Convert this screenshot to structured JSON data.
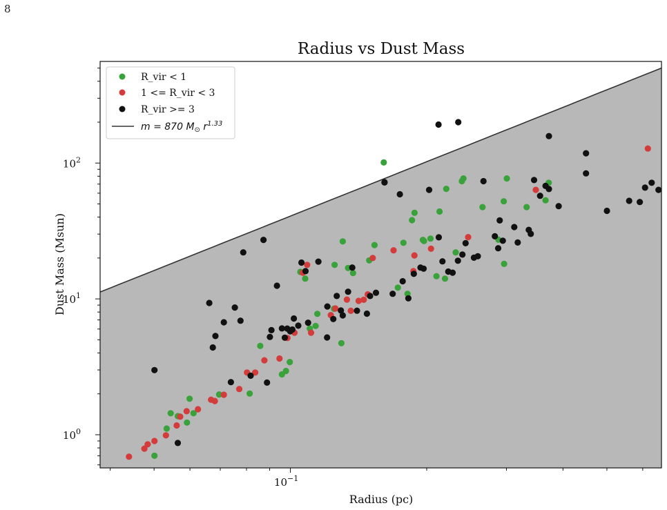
{
  "page_number": "8",
  "chart_data": {
    "type": "scatter",
    "title": "Radius vs Dust Mass",
    "xlabel": "Radius (pc)",
    "ylabel": "Dust Mass (Msun)",
    "xscale": "log",
    "yscale": "log",
    "xlim": [
      0.038,
      0.66
    ],
    "ylim": [
      0.57,
      560
    ],
    "xticks": [
      {
        "value": 0.1,
        "base": "10",
        "exp": "−1"
      }
    ],
    "yticks": [
      {
        "value": 1,
        "base": "10",
        "exp": "0"
      },
      {
        "value": 10,
        "base": "10",
        "exp": "1"
      },
      {
        "value": 100,
        "base": "10",
        "exp": "2"
      }
    ],
    "grid": false,
    "legend_position": "upper-left",
    "fit_line": {
      "label_prefix": "m = 870 M",
      "label_sub": "⊙",
      "label_mid": " r",
      "label_sup": "1.33",
      "coefficient": 870,
      "exponent": 1.33,
      "color": "#333333"
    },
    "shaded_region_color": "#b8b8b8",
    "series": [
      {
        "name": "R_vir < 1",
        "color": "#3aa23a",
        "x": [
          0.0501,
          0.0564,
          0.0533,
          0.0591,
          0.0599,
          0.0544,
          0.0611,
          0.0696,
          0.0813,
          0.0858,
          0.0958,
          0.0978,
          0.0997,
          0.1052,
          0.1078,
          0.1104,
          0.1137,
          0.1147,
          0.1248,
          0.1252,
          0.1305,
          0.1296,
          0.1341,
          0.1375,
          0.1493,
          0.1534,
          0.1608,
          0.1727,
          0.1814,
          0.1777,
          0.1856,
          0.188,
          0.1961,
          0.2195,
          0.1973,
          0.2039,
          0.2102,
          0.2135,
          0.2209,
          0.2318,
          0.2392,
          0.2411,
          0.2656,
          0.288,
          0.296,
          0.3006,
          0.3325,
          0.366,
          0.372,
          0.2965
        ],
        "y": [
          0.7,
          1.37,
          1.11,
          1.23,
          1.84,
          1.44,
          1.44,
          1.98,
          2.01,
          4.51,
          2.78,
          2.95,
          3.43,
          15.8,
          14.1,
          6.05,
          6.32,
          7.76,
          8.46,
          17.8,
          26.5,
          4.72,
          16.9,
          15.5,
          19.2,
          24.9,
          101.0,
          12.1,
          10.9,
          25.9,
          38.0,
          43.0,
          27.2,
          14.1,
          26.7,
          27.8,
          14.7,
          44.0,
          64.6,
          22.0,
          73.6,
          77.0,
          47.4,
          27.3,
          52.3,
          77.0,
          47.4,
          53.2,
          71.6,
          18.1
        ]
      },
      {
        "name": "1 <= R_vir < 3",
        "color": "#d43b3b",
        "x": [
          0.044,
          0.0476,
          0.0484,
          0.0501,
          0.0531,
          0.0561,
          0.0571,
          0.059,
          0.0625,
          0.0668,
          0.0681,
          0.0713,
          0.0771,
          0.0802,
          0.0836,
          0.0876,
          0.0946,
          0.0985,
          0.1021,
          0.1065,
          0.1089,
          0.1111,
          0.1228,
          0.1257,
          0.1333,
          0.136,
          0.1415,
          0.1452,
          0.1482,
          0.152,
          0.169,
          0.1869,
          0.1879,
          0.2044,
          0.2469,
          0.3483,
          0.6159
        ],
        "y": [
          0.69,
          0.79,
          0.85,
          0.9,
          0.99,
          1.17,
          1.36,
          1.49,
          1.54,
          1.81,
          1.77,
          1.97,
          2.17,
          2.87,
          2.87,
          3.53,
          3.64,
          5.15,
          5.64,
          15.6,
          17.8,
          5.64,
          7.6,
          8.5,
          9.88,
          8.17,
          9.67,
          9.85,
          10.8,
          20.0,
          22.8,
          16.0,
          20.9,
          23.4,
          28.5,
          63.5,
          128.0
        ]
      },
      {
        "name": "R_vir >= 3",
        "color": "#111111",
        "x": [
          0.0501,
          0.0564,
          0.0662,
          0.0674,
          0.0683,
          0.0713,
          0.0739,
          0.0754,
          0.0776,
          0.0787,
          0.0817,
          0.0872,
          0.0888,
          0.0901,
          0.0908,
          0.0934,
          0.0958,
          0.0972,
          0.0984,
          0.0999,
          0.101,
          0.1018,
          0.1041,
          0.1058,
          0.108,
          0.1094,
          0.1153,
          0.1205,
          0.1207,
          0.1244,
          0.1266,
          0.1293,
          0.1305,
          0.1341,
          0.137,
          0.1403,
          0.1476,
          0.15,
          0.1545,
          0.1614,
          0.1682,
          0.1745,
          0.177,
          0.1822,
          0.1873,
          0.1938,
          0.1969,
          0.2025,
          0.2127,
          0.2167,
          0.2232,
          0.2282,
          0.2344,
          0.2398,
          0.2437,
          0.2543,
          0.2594,
          0.2669,
          0.2829,
          0.2877,
          0.2899,
          0.2945,
          0.3122,
          0.3177,
          0.3361,
          0.3395,
          0.3453,
          0.356,
          0.366,
          0.3724,
          0.3913,
          0.4497,
          0.5002,
          0.56,
          0.591,
          0.607,
          0.628,
          0.65,
          0.67,
          0.6946,
          0.7058,
          0.7265
        ],
        "y": [
          2.99,
          0.87,
          9.33,
          4.39,
          5.33,
          6.73,
          2.44,
          8.64,
          6.91,
          22.0,
          2.72,
          27.2,
          2.42,
          5.25,
          5.89,
          12.5,
          6.06,
          5.18,
          6.05,
          5.78,
          5.95,
          7.17,
          6.35,
          18.5,
          16.0,
          6.68,
          18.8,
          5.2,
          8.79,
          7.11,
          10.5,
          8.22,
          7.56,
          11.3,
          17.0,
          8.19,
          7.79,
          10.5,
          11.1,
          72.3,
          10.9,
          58.9,
          13.5,
          10.1,
          15.3,
          17.0,
          16.7,
          63.5,
          28.4,
          18.9,
          15.9,
          15.6,
          19.1,
          21.2,
          25.7,
          20.1,
          20.6,
          73.6,
          28.9,
          23.6,
          37.8,
          26.8,
          33.8,
          26.0,
          32.2,
          30.1,
          75.0,
          57.4,
          67.9,
          64.4,
          48.2,
          84.0,
          44.5,
          52.7,
          51.7,
          65.9,
          71.6,
          63.5,
          61.4,
          83.3,
          83.3,
          69.6
        ],
        "extra_points": [
          {
            "x": 0.2124,
            "y": 192
          },
          {
            "x": 0.2348,
            "y": 200
          },
          {
            "x": 0.3724,
            "y": 158
          },
          {
            "x": 0.4497,
            "y": 118
          },
          {
            "x": 0.1614,
            "y": 72
          }
        ]
      }
    ]
  }
}
